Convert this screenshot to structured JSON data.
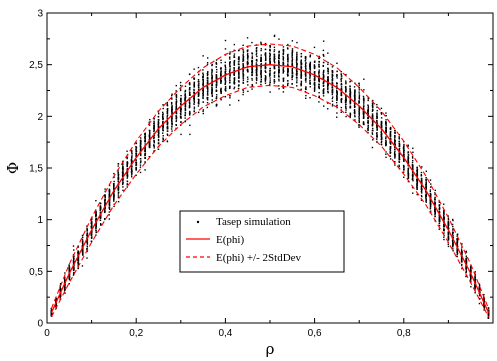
{
  "chart_data": {
    "type": "scatter",
    "title": "",
    "xlabel": "ρ",
    "ylabel": "Φ",
    "xlim": [
      0,
      1
    ],
    "ylim": [
      0,
      3
    ],
    "x_ticks": [
      0,
      0.2,
      0.4,
      0.6,
      0.8
    ],
    "x_tick_labels": [
      "0",
      "0,2",
      "0,4",
      "0,6",
      "0,8"
    ],
    "y_ticks": [
      0,
      0.5,
      1,
      1.5,
      2,
      2.5,
      3
    ],
    "y_tick_labels": [
      "0",
      "0,5",
      "1",
      "1,5",
      "2",
      "2,5",
      "3"
    ],
    "grid": false,
    "legend_position": "center-bottom",
    "series": [
      {
        "name": "Tasep simulation",
        "kind": "scatter",
        "color": "#000000",
        "x_range": [
          0.01,
          0.99
        ],
        "x_step": 0.01,
        "mean_function": "10*x*(1-x)",
        "spread_std_function": "0.1*sqrt(4*x*(1-x))"
      },
      {
        "name": "E(phi)",
        "kind": "line",
        "color": "#ff0000",
        "dash": "solid",
        "x": [
          0.01,
          0.05,
          0.1,
          0.15,
          0.2,
          0.25,
          0.3,
          0.35,
          0.4,
          0.45,
          0.5,
          0.55,
          0.6,
          0.65,
          0.7,
          0.75,
          0.8,
          0.85,
          0.9,
          0.95,
          0.99
        ],
        "y": [
          0.1,
          0.48,
          0.9,
          1.28,
          1.6,
          1.88,
          2.1,
          2.28,
          2.4,
          2.48,
          2.5,
          2.48,
          2.4,
          2.28,
          2.1,
          1.88,
          1.6,
          1.28,
          0.9,
          0.48,
          0.1
        ]
      },
      {
        "name": "E(phi) +/- 2StdDev",
        "kind": "line-band",
        "color": "#ff0000",
        "dash": "dashed",
        "x": [
          0.01,
          0.05,
          0.1,
          0.15,
          0.2,
          0.25,
          0.3,
          0.35,
          0.4,
          0.45,
          0.5,
          0.55,
          0.6,
          0.65,
          0.7,
          0.75,
          0.8,
          0.85,
          0.9,
          0.95,
          0.99
        ],
        "upper": [
          0.14,
          0.57,
          1.02,
          1.42,
          1.76,
          2.05,
          2.28,
          2.47,
          2.6,
          2.68,
          2.7,
          2.68,
          2.6,
          2.47,
          2.28,
          2.05,
          1.76,
          1.42,
          1.02,
          0.57,
          0.14
        ],
        "lower": [
          0.06,
          0.39,
          0.78,
          1.14,
          1.44,
          1.71,
          1.92,
          2.09,
          2.2,
          2.28,
          2.3,
          2.28,
          2.2,
          2.09,
          1.92,
          1.71,
          1.44,
          1.14,
          0.78,
          0.39,
          0.06
        ]
      }
    ]
  }
}
